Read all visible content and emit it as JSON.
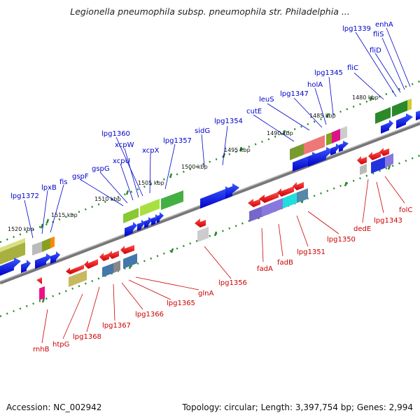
{
  "title": "Legionella pneumophila subsp. pneumophila str. Philadelphia ...",
  "footer": {
    "accession": "Accession: NC_002942",
    "topology": "Topology: circular; Length: 3,397,754 bp; Genes: 2,994"
  },
  "colors": {
    "forward_label": "#0000cc",
    "reverse_label": "#cc0000",
    "backbone": "#888888",
    "tick": "#2a8a2a"
  },
  "ticks": [
    "1520 kbp",
    "1515 kbp",
    "1510 kbp",
    "1505 kbp",
    "1500 kbp",
    "1495 kbp",
    "1490 kbp",
    "1485 kbp",
    "1480 kbp"
  ],
  "forward_genes": [
    "lpg1372",
    "lpxB",
    "fis",
    "gspF",
    "gspG",
    "xcpU",
    "xcpW",
    "lpg1360",
    "xcpX",
    "lpg1357",
    "sidG",
    "lpg1354",
    "cutE",
    "leuS",
    "lpg1347",
    "holA",
    "lpg1345",
    "fliC",
    "lpg1339",
    "fliD",
    "fliS",
    "enhA"
  ],
  "reverse_genes": [
    "rnhB",
    "htpG",
    "lpg1368",
    "lpg1367",
    "lpg1366",
    "lpg1365",
    "glnA",
    "lpg1356",
    "fadA",
    "fadB",
    "lpg1351",
    "lpg1350",
    "dedE",
    "lpg1343",
    "folC"
  ]
}
